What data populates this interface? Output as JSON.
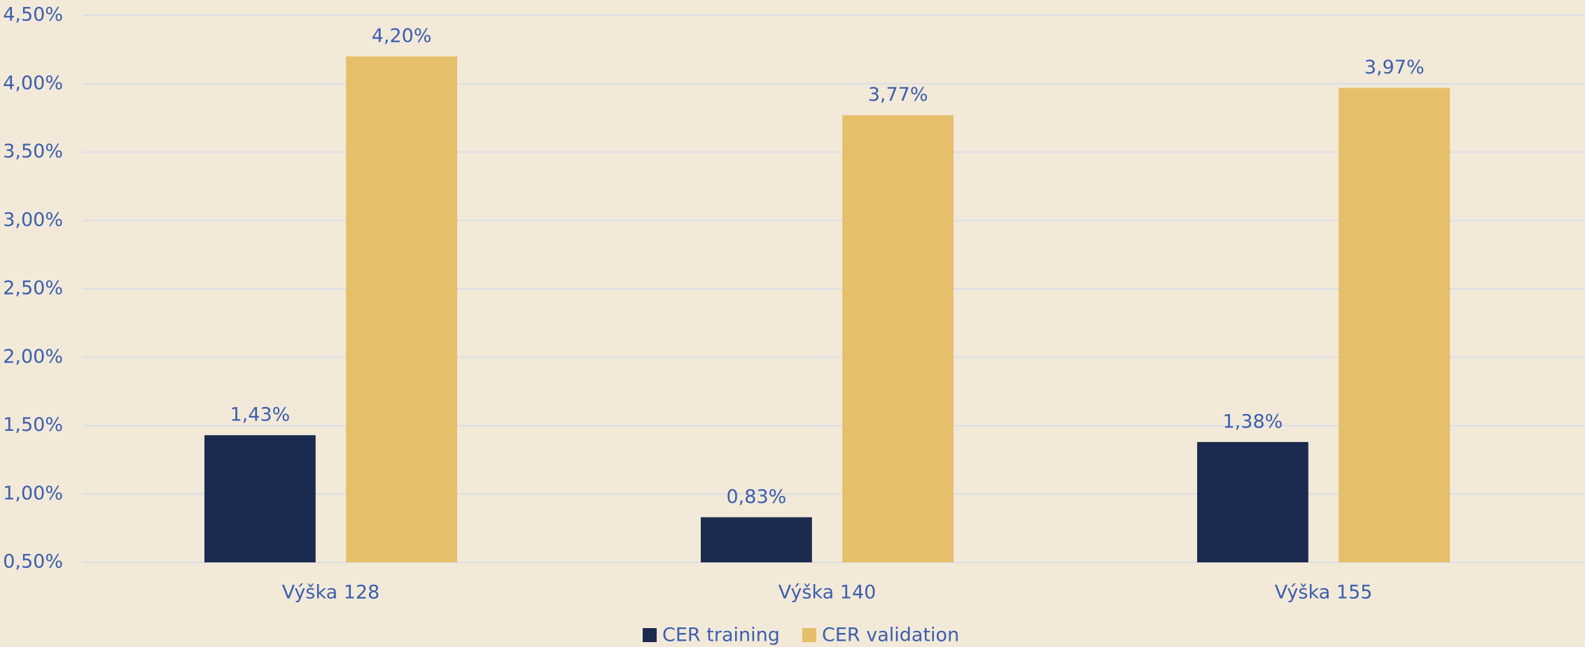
{
  "chart_data": {
    "type": "bar",
    "categories": [
      "Výška 128",
      "Výška 140",
      "Výška 155"
    ],
    "series": [
      {
        "name": "CER training",
        "color": "#1b2b4f",
        "values": [
          1.43,
          0.83,
          1.38
        ],
        "value_labels": [
          "1,43%",
          "0,83%",
          "1,38%"
        ]
      },
      {
        "name": "CER validation",
        "color": "#e5bf6a",
        "values": [
          4.2,
          3.77,
          3.97
        ],
        "value_labels": [
          "4,20%",
          "3,77%",
          "3,97%"
        ]
      }
    ],
    "ylim": [
      0.5,
      4.5
    ],
    "yticks": [
      {
        "value": 0.5,
        "label": "0,50%"
      },
      {
        "value": 1.0,
        "label": "1,00%"
      },
      {
        "value": 1.5,
        "label": "1,50%"
      },
      {
        "value": 2.0,
        "label": "2,00%"
      },
      {
        "value": 2.5,
        "label": "2,50%"
      },
      {
        "value": 3.0,
        "label": "3,00%"
      },
      {
        "value": 3.5,
        "label": "3,50%"
      },
      {
        "value": 4.0,
        "label": "4,00%"
      },
      {
        "value": 4.5,
        "label": "4,50%"
      }
    ],
    "grid": true,
    "legend": "bottom"
  }
}
